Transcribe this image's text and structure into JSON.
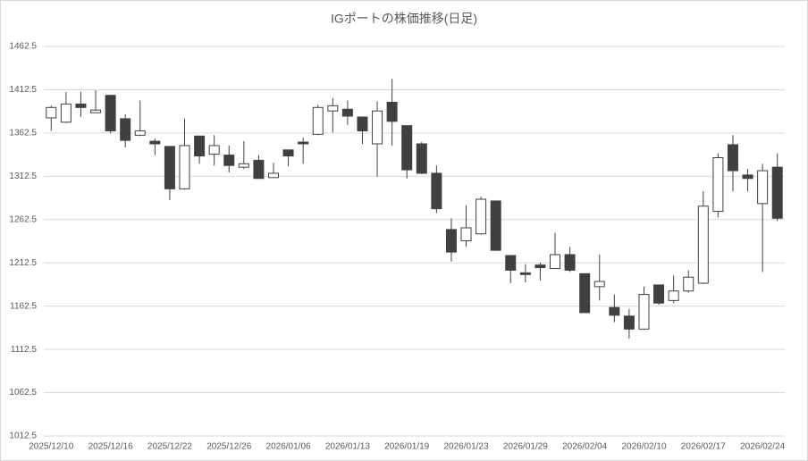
{
  "chart_data": {
    "type": "candlestick",
    "title": "IGポートの株価推移(日足)",
    "categories": [
      "2025/12/10",
      null,
      null,
      null,
      "2025/12/16",
      null,
      null,
      null,
      "2025/12/22",
      null,
      null,
      null,
      "2025/12/26",
      null,
      null,
      null,
      "2026/01/06",
      null,
      null,
      null,
      "2026/01/13",
      null,
      null,
      null,
      "2026/01/19",
      null,
      null,
      null,
      "2026/01/23",
      null,
      null,
      null,
      "2026/01/29",
      null,
      null,
      null,
      "2026/02/04",
      null,
      null,
      null,
      "2026/02/10",
      null,
      null,
      null,
      "2026/02/17",
      null,
      null,
      null,
      "2026/02/24",
      null
    ],
    "open": [
      1380,
      1375,
      1396,
      1386,
      1406,
      1379,
      1360,
      1353,
      1347,
      1298,
      1359,
      1338,
      1337,
      1323,
      1331,
      1311,
      1343,
      1352,
      1361,
      1388,
      1390,
      1381,
      1350,
      1398,
      1371,
      1350,
      1316,
      1251,
      1238,
      1246,
      1284,
      1221,
      1201,
      1210,
      1206,
      1222,
      1200,
      1185,
      1161,
      1151,
      1136,
      1187,
      1169,
      1180,
      1189,
      1272,
      1349,
      1314,
      1281,
      1323
    ],
    "high": [
      1394,
      1410,
      1410,
      1412,
      1406,
      1384,
      1400,
      1356,
      1347,
      1379,
      1359,
      1360,
      1348,
      1353,
      1337,
      1328,
      1343,
      1357,
      1395,
      1403,
      1400,
      1381,
      1399,
      1425,
      1371,
      1352,
      1325,
      1264,
      1279,
      1289,
      1284,
      1221,
      1211,
      1213,
      1247,
      1231,
      1200,
      1222,
      1176,
      1159,
      1185,
      1187,
      1198,
      1204,
      1295,
      1339,
      1360,
      1321,
      1327,
      1339
    ],
    "low": [
      1365,
      1374,
      1381,
      1386,
      1362,
      1346,
      1359,
      1337,
      1285,
      1297,
      1327,
      1325,
      1317,
      1321,
      1310,
      1311,
      1324,
      1327,
      1360,
      1363,
      1372,
      1350,
      1312,
      1348,
      1310,
      1315,
      1270,
      1214,
      1231,
      1245,
      1227,
      1189,
      1190,
      1192,
      1206,
      1202,
      1155,
      1169,
      1144,
      1125,
      1135,
      1164,
      1166,
      1178,
      1188,
      1265,
      1295,
      1295,
      1202,
      1261
    ],
    "close": [
      1392,
      1396,
      1392,
      1389,
      1365,
      1354,
      1365,
      1350,
      1298,
      1348,
      1336,
      1348,
      1325,
      1327,
      1310,
      1316,
      1336,
      1350,
      1392,
      1394,
      1382,
      1365,
      1388,
      1376,
      1320,
      1316,
      1275,
      1225,
      1253,
      1286,
      1227,
      1204,
      1199,
      1207,
      1222,
      1204,
      1155,
      1191,
      1152,
      1136,
      1176,
      1166,
      1180,
      1196,
      1278,
      1334,
      1319,
      1310,
      1319,
      1264
    ],
    "up_color": "#ffffff",
    "down_color": "#404040",
    "edge_color": "#404040",
    "ylim": [
      1012.5,
      1462.5
    ],
    "yticks": [
      1012.5,
      1062.5,
      1112.5,
      1162.5,
      1212.5,
      1262.5,
      1312.5,
      1362.5,
      1412.5,
      1462.5
    ],
    "grid": true
  }
}
